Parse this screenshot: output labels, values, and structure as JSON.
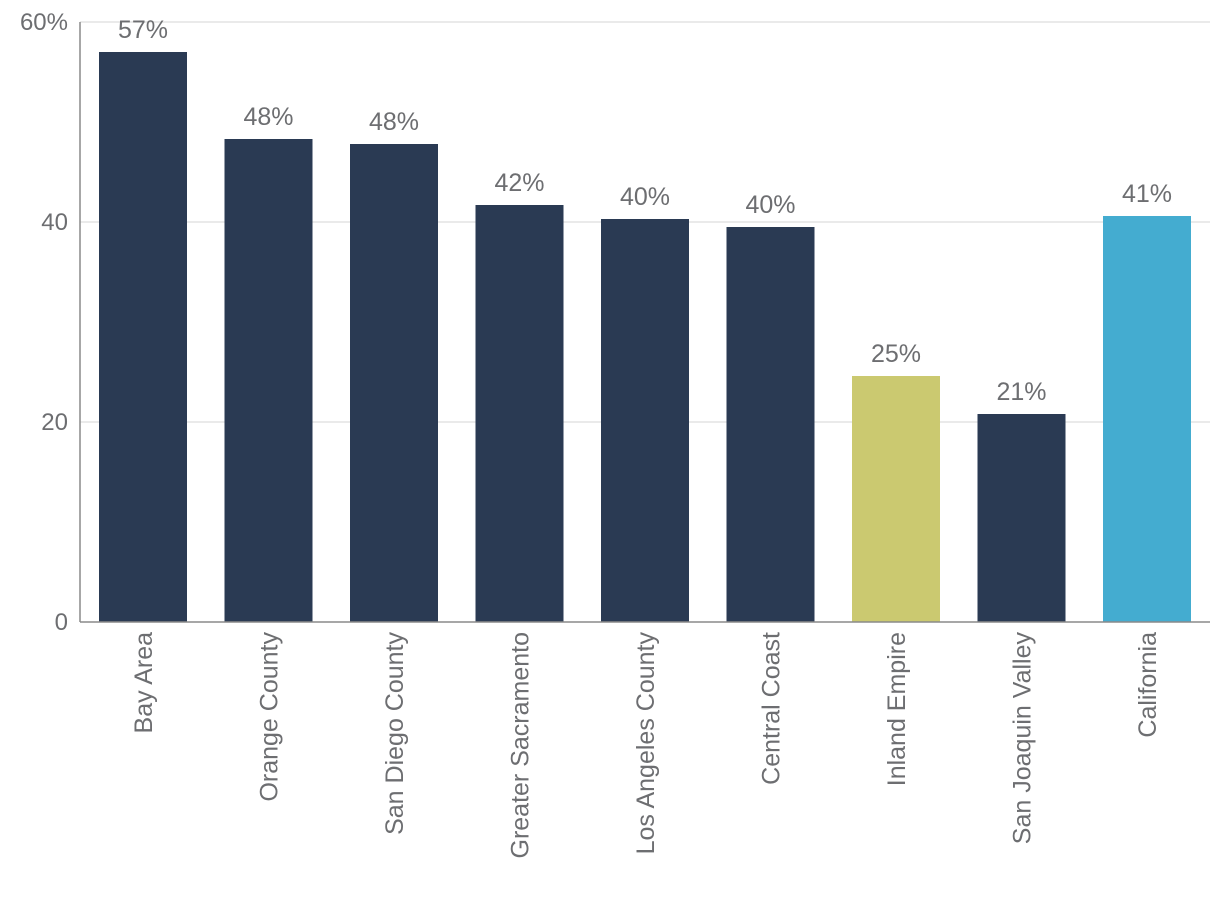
{
  "chart_data": {
    "type": "bar",
    "categories": [
      "Bay Area",
      "Orange County",
      "San Diego County",
      "Greater Sacramento",
      "Los Angeles County",
      "Central Coast",
      "Inland Empire",
      "San Joaquin Valley",
      "California"
    ],
    "values": [
      57,
      48.3,
      47.8,
      41.7,
      40.3,
      39.5,
      24.6,
      20.8,
      40.6
    ],
    "data_labels": [
      "57%",
      "48%",
      "48%",
      "42%",
      "40%",
      "40%",
      "25%",
      "21%",
      "41%"
    ],
    "bar_colors": [
      "#2a3a53",
      "#2a3a53",
      "#2a3a53",
      "#2a3a53",
      "#2a3a53",
      "#2a3a53",
      "#cbc970",
      "#2a3a53",
      "#44acd0"
    ],
    "ylim": [
      0,
      60
    ],
    "yticks": [
      0,
      20,
      40,
      60
    ],
    "ytick_labels": [
      "0",
      "20",
      "40",
      "60%"
    ],
    "title": "",
    "xlabel": "",
    "ylabel": "",
    "grid": true,
    "legend": "none"
  }
}
